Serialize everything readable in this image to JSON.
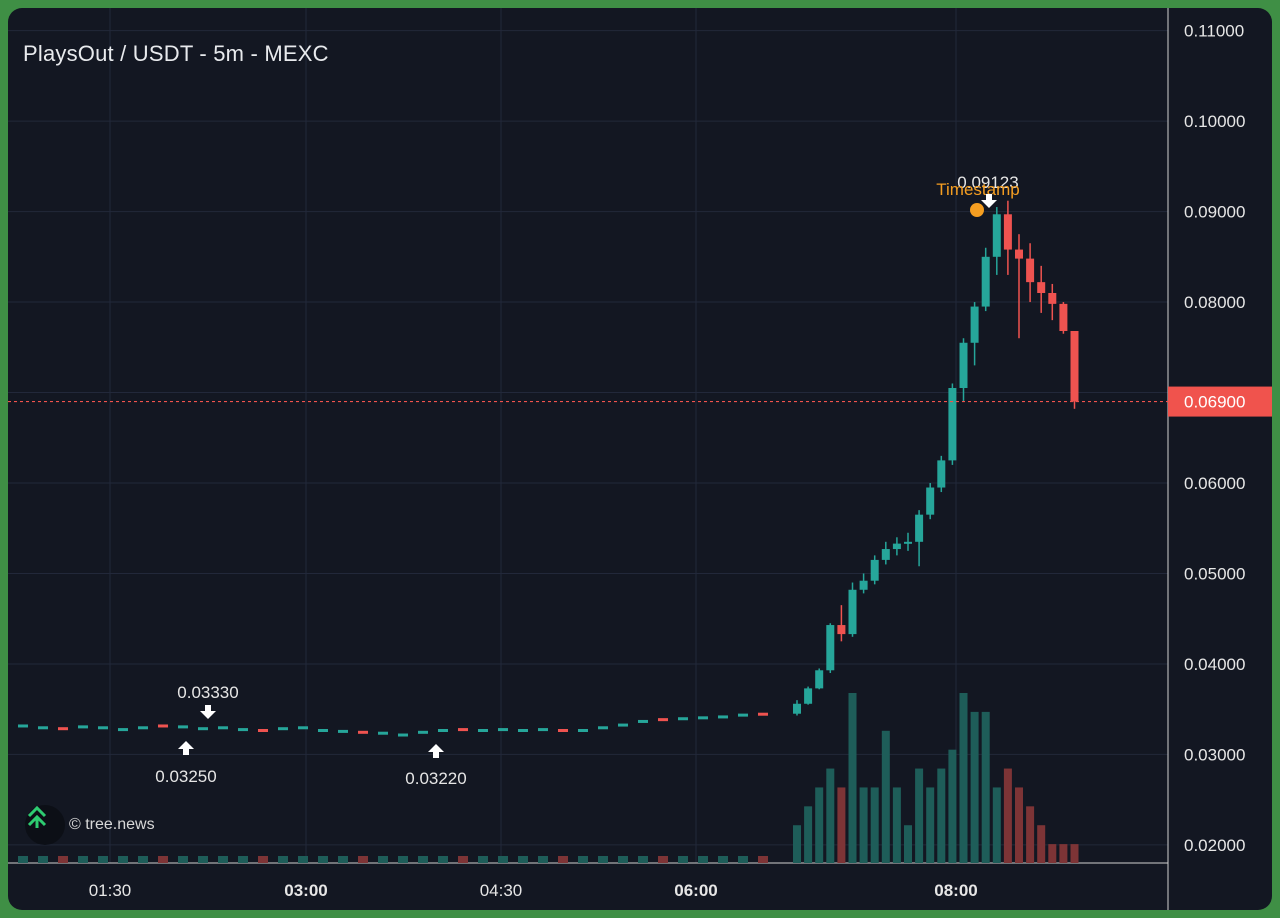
{
  "title": "PlaysOut / USDT - 5m - MEXC",
  "watermark": "© tree.news",
  "colors": {
    "up": "#26a69a",
    "down": "#ef5350",
    "up_volume": "#1e5d59",
    "down_volume": "#7d3436",
    "last_price_line": "#f0534d",
    "timestamp": "#f59e21",
    "grid": "#22283a"
  },
  "chart_data": {
    "type": "candlestick",
    "interval": "5m",
    "ylim": [
      0.018,
      0.1125
    ],
    "y_ticks": [
      "0.11000",
      "0.10000",
      "0.09000",
      "0.08000",
      "0.07000",
      "0.06000",
      "0.05000",
      "0.04000",
      "0.03000",
      "0.02000"
    ],
    "x_ticks": [
      {
        "label": "01:30",
        "bold": false
      },
      {
        "label": "03:00",
        "bold": true
      },
      {
        "label": "04:30",
        "bold": false
      },
      {
        "label": "06:00",
        "bold": true
      },
      {
        "label": "08:00",
        "bold": true
      }
    ],
    "last_price": "0.06900",
    "candles_summary": "flat near 0.033 from ~00:50 to ~06:45, then rally to 0.09123 high near 08:10, then pullback to 0.069",
    "candles": [
      {
        "time": "06:50",
        "o": 0.0345,
        "h": 0.036,
        "l": 0.0343,
        "c": 0.0356,
        "v": 2
      },
      {
        "time": "07:00",
        "o": 0.0356,
        "h": 0.0375,
        "l": 0.0355,
        "c": 0.0373,
        "v": 3
      },
      {
        "time": "07:10",
        "o": 0.0373,
        "h": 0.0395,
        "l": 0.0372,
        "c": 0.0393,
        "v": 4
      },
      {
        "time": "07:15",
        "o": 0.0393,
        "h": 0.0445,
        "l": 0.039,
        "c": 0.0443,
        "v": 5
      },
      {
        "time": "07:20",
        "o": 0.0443,
        "h": 0.0465,
        "l": 0.0425,
        "c": 0.0433,
        "v": 4
      },
      {
        "time": "07:25",
        "o": 0.0433,
        "h": 0.049,
        "l": 0.043,
        "c": 0.0482,
        "v": 9
      },
      {
        "time": "07:30",
        "o": 0.0482,
        "h": 0.05,
        "l": 0.0478,
        "c": 0.0492,
        "v": 4
      },
      {
        "time": "07:35",
        "o": 0.0492,
        "h": 0.052,
        "l": 0.0488,
        "c": 0.0515,
        "v": 4
      },
      {
        "time": "07:40",
        "o": 0.0515,
        "h": 0.0535,
        "l": 0.051,
        "c": 0.0527,
        "v": 7
      },
      {
        "time": "07:45",
        "o": 0.0527,
        "h": 0.054,
        "l": 0.052,
        "c": 0.0533,
        "v": 4
      },
      {
        "time": "07:50",
        "o": 0.0533,
        "h": 0.0545,
        "l": 0.0525,
        "c": 0.0535,
        "v": 2
      },
      {
        "time": "07:55",
        "o": 0.0535,
        "h": 0.057,
        "l": 0.0508,
        "c": 0.0565,
        "v": 5
      },
      {
        "time": "08:00",
        "o": 0.0565,
        "h": 0.06,
        "l": 0.056,
        "c": 0.0595,
        "v": 4
      },
      {
        "time": "08:05",
        "o": 0.0595,
        "h": 0.063,
        "l": 0.059,
        "c": 0.0625,
        "v": 5
      },
      {
        "time": "08:10",
        "o": 0.0625,
        "h": 0.071,
        "l": 0.062,
        "c": 0.0705,
        "v": 6
      },
      {
        "time": "08:15",
        "o": 0.0705,
        "h": 0.076,
        "l": 0.069,
        "c": 0.0755,
        "v": 9
      },
      {
        "time": "08:20",
        "o": 0.0755,
        "h": 0.08,
        "l": 0.073,
        "c": 0.0795,
        "v": 8
      },
      {
        "time": "08:25",
        "o": 0.0795,
        "h": 0.086,
        "l": 0.079,
        "c": 0.085,
        "v": 8
      },
      {
        "time": "08:30",
        "o": 0.085,
        "h": 0.0905,
        "l": 0.083,
        "c": 0.0897,
        "v": 4
      },
      {
        "time": "08:35",
        "o": 0.0897,
        "h": 0.0912,
        "l": 0.083,
        "c": 0.0858,
        "v": 5
      },
      {
        "time": "08:40",
        "o": 0.0858,
        "h": 0.0875,
        "l": 0.076,
        "c": 0.0848,
        "v": 4
      },
      {
        "time": "08:45",
        "o": 0.0848,
        "h": 0.0865,
        "l": 0.08,
        "c": 0.0822,
        "v": 3
      },
      {
        "time": "08:50",
        "o": 0.0822,
        "h": 0.084,
        "l": 0.0788,
        "c": 0.081,
        "v": 2
      },
      {
        "time": "08:55",
        "o": 0.081,
        "h": 0.082,
        "l": 0.078,
        "c": 0.0798,
        "v": 1
      },
      {
        "time": "09:00",
        "o": 0.0798,
        "h": 0.08,
        "l": 0.0765,
        "c": 0.0768,
        "v": 1
      },
      {
        "time": "09:05",
        "o": 0.0768,
        "h": 0.0768,
        "l": 0.0682,
        "c": 0.069,
        "v": 1
      }
    ],
    "annotations": [
      {
        "label": "0.03330",
        "type": "high"
      },
      {
        "label": "0.03250",
        "type": "low"
      },
      {
        "label": "0.03220",
        "type": "low"
      },
      {
        "label": "0.09123",
        "type": "high"
      },
      {
        "label": "Timestamp",
        "type": "marker"
      }
    ]
  }
}
